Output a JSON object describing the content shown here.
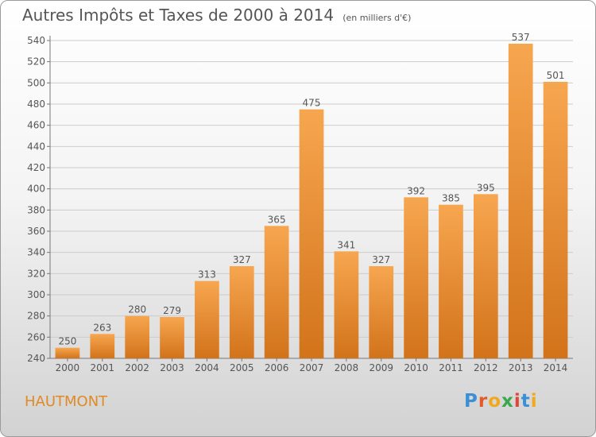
{
  "title": "Autres Impôts et Taxes de 2000 à 2014",
  "unit_note": "(en milliers d'€)",
  "city": "HAUTMONT",
  "brand": {
    "letters": [
      "P",
      "r",
      "o",
      "x",
      "i",
      "t",
      "i"
    ],
    "colors": [
      "#3b8fd4",
      "#e35a2a",
      "#f2a81d",
      "#3aa84a",
      "#e0453a",
      "#3b8fd4",
      "#f2a81d"
    ]
  },
  "colors": {
    "bar_light": "#f7a650",
    "bar_dark": "#d2731a",
    "text": "#555555",
    "grid": "#cccccc"
  },
  "chart_data": {
    "type": "bar",
    "title": "Autres Impôts et Taxes de 2000 à 2014",
    "subtitle": "(en milliers d'€)",
    "categories": [
      "2000",
      "2001",
      "2002",
      "2003",
      "2004",
      "2005",
      "2006",
      "2007",
      "2008",
      "2009",
      "2010",
      "2011",
      "2012",
      "2013",
      "2014"
    ],
    "values": [
      250,
      263,
      280,
      279,
      313,
      327,
      365,
      475,
      341,
      327,
      392,
      385,
      395,
      537,
      501
    ],
    "ylim": [
      240,
      540
    ],
    "yticks": [
      240,
      260,
      280,
      300,
      320,
      340,
      360,
      380,
      400,
      420,
      440,
      460,
      480,
      500,
      520,
      540
    ],
    "xlabel": "",
    "ylabel": "",
    "grid": true,
    "data_labels": true
  }
}
